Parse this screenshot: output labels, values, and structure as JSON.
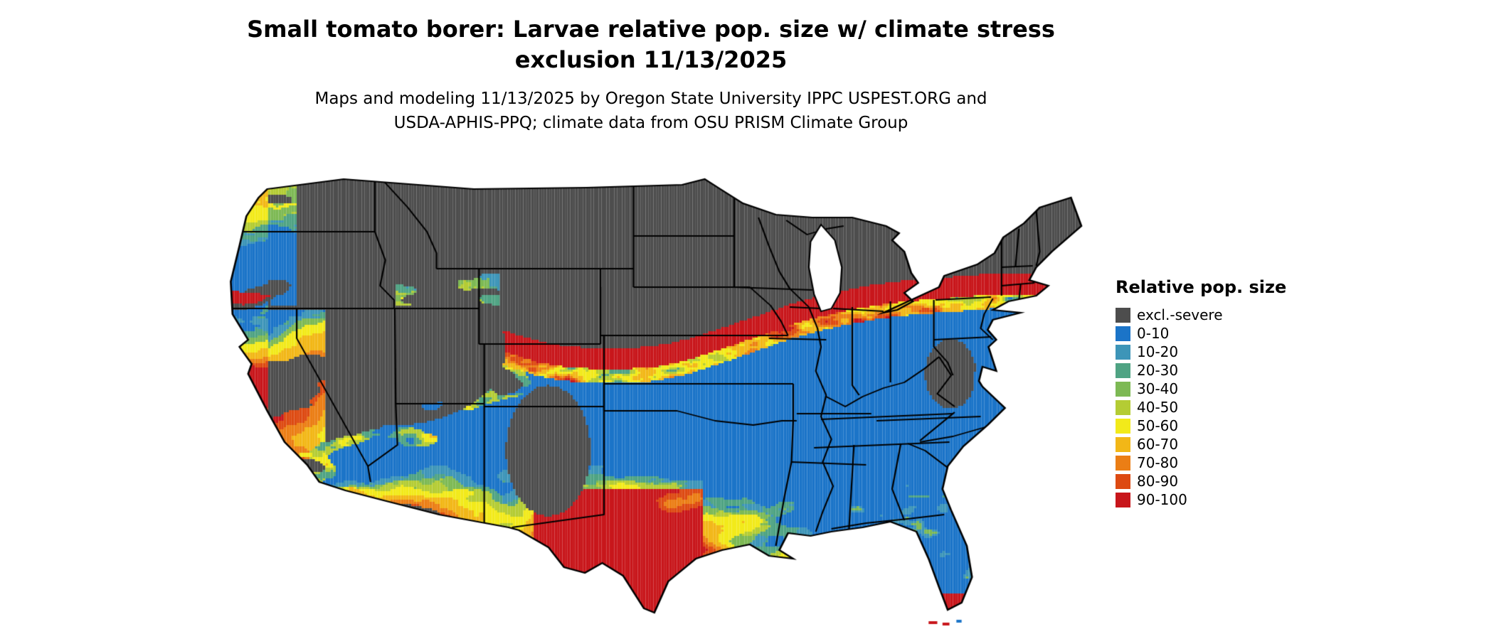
{
  "title": {
    "line1": "Small tomato borer: Larvae relative pop. size w/ climate stress",
    "line2": "exclusion 11/13/2025"
  },
  "subtitle": {
    "line1": "Maps and modeling 11/13/2025 by Oregon State University IPPC USPEST.ORG and",
    "line2": "USDA-APHIS-PPQ; climate data from OSU PRISM Climate Group"
  },
  "map": {
    "outline_color": "#000000",
    "water_color": "#ffffff"
  },
  "legend": {
    "title": "Relative pop. size",
    "items": [
      {
        "label": "excl.-severe",
        "color": "#4D4D4D"
      },
      {
        "label": "0-10",
        "color": "#1B74C8"
      },
      {
        "label": "10-20",
        "color": "#3D95B8"
      },
      {
        "label": "20-30",
        "color": "#4FA383"
      },
      {
        "label": "30-40",
        "color": "#7DB954"
      },
      {
        "label": "40-50",
        "color": "#B4CC34"
      },
      {
        "label": "50-60",
        "color": "#F2EA1A"
      },
      {
        "label": "60-70",
        "color": "#F2B717"
      },
      {
        "label": "70-80",
        "color": "#EB7E15"
      },
      {
        "label": "80-90",
        "color": "#DD4A12"
      },
      {
        "label": "90-100",
        "color": "#C8161B"
      }
    ]
  }
}
